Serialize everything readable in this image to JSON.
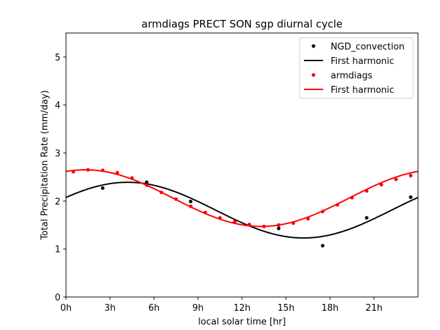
{
  "chart_data": {
    "type": "line",
    "title": "armdiags PRECT SON sgp diurnal cycle",
    "xlabel": "local solar time [hr]",
    "ylabel": "Total Precipitation Rate (mm/day)",
    "xlim": [
      0,
      24
    ],
    "ylim": [
      0,
      5.5
    ],
    "x_ticks": [
      0,
      3,
      6,
      9,
      12,
      15,
      18,
      21
    ],
    "x_tick_labels": [
      "0h",
      "3h",
      "6h",
      "9h",
      "12h",
      "15h",
      "18h",
      "21h"
    ],
    "y_ticks": [
      0,
      1,
      2,
      3,
      4,
      5
    ],
    "y_tick_labels": [
      "0",
      "1",
      "2",
      "3",
      "4",
      "5"
    ],
    "legend_position": "top-right",
    "series": [
      {
        "name": "NGD_convection",
        "kind": "points",
        "color": "#000000",
        "x": [
          2.5,
          5.5,
          8.5,
          11.5,
          14.5,
          17.5,
          20.5,
          23.5
        ],
        "y": [
          2.27,
          2.39,
          1.99,
          1.56,
          1.43,
          1.07,
          1.65,
          2.08
        ]
      },
      {
        "name": "First harmonic",
        "kind": "harmonic",
        "color": "#000000",
        "mean": 1.81,
        "amplitude": 0.58,
        "peak_hour": 4.2
      },
      {
        "name": "armdiags",
        "kind": "points",
        "color": "#ff0000",
        "x": [
          0.5,
          1.5,
          2.5,
          3.5,
          4.5,
          5.5,
          6.5,
          7.5,
          8.5,
          9.5,
          10.5,
          11.5,
          12.5,
          13.5,
          14.5,
          15.5,
          16.5,
          17.5,
          18.5,
          19.5,
          20.5,
          21.5,
          22.5,
          23.5
        ],
        "y": [
          2.61,
          2.65,
          2.64,
          2.59,
          2.48,
          2.33,
          2.18,
          2.04,
          1.89,
          1.76,
          1.65,
          1.57,
          1.51,
          1.47,
          1.5,
          1.54,
          1.63,
          1.78,
          1.92,
          2.07,
          2.21,
          2.34,
          2.45,
          2.53
        ]
      },
      {
        "name": "First harmonic",
        "kind": "harmonic",
        "color": "#ff0000",
        "mean": 2.06,
        "amplitude": 0.59,
        "peak_hour": 1.3
      }
    ]
  }
}
